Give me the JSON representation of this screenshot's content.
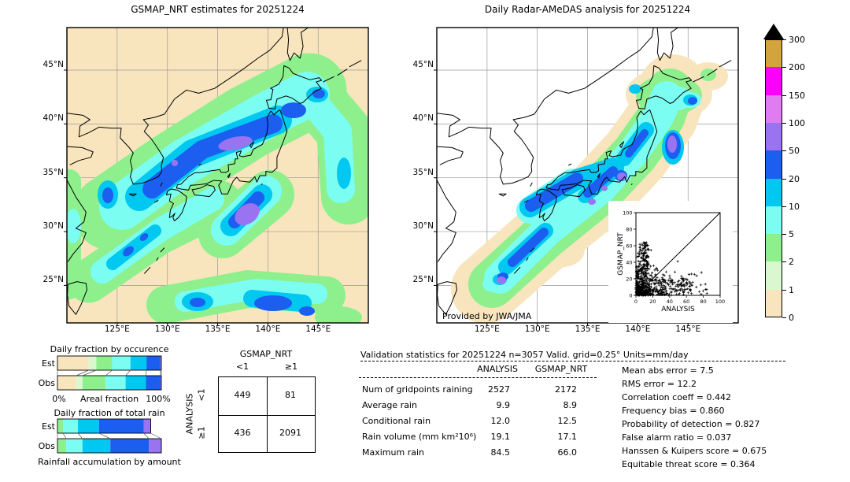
{
  "palette": {
    "p0": "#f8e5bd",
    "p1": "#d9f8cf",
    "p2": "#8df08d",
    "p5": "#7cfdf2",
    "p10": "#00c8f0",
    "p20": "#1c5ff0",
    "p50": "#9a74f0",
    "p100": "#e07cf2",
    "p150": "#fb00fb",
    "p200": "#d3a43e",
    "over": "#000000",
    "grid": "#9a9a9a",
    "ocean_right": "#ffffff"
  },
  "maps": {
    "left": {
      "title": "GSMAP_NRT estimates for 20251224",
      "lat_ticks": [
        "45°N",
        "40°N",
        "35°N",
        "30°N",
        "25°N"
      ],
      "lon_ticks": [
        "125°E",
        "130°E",
        "135°E",
        "140°E",
        "145°E"
      ]
    },
    "right": {
      "title": "Daily Radar-AMeDAS analysis for 20251224",
      "credit": "Provided by JWA/JMA",
      "lat_ticks": [
        "45°N",
        "40°N",
        "35°N",
        "30°N",
        "25°N"
      ],
      "lon_ticks": [
        "125°E",
        "130°E",
        "135°E",
        "140°E",
        "145°E"
      ]
    }
  },
  "colorbar": {
    "levels": [
      "300",
      "200",
      "150",
      "100",
      "50",
      "20",
      "10",
      "5",
      "2",
      "1",
      "0"
    ],
    "colors_top_to_bottom": [
      "p200",
      "p150",
      "p100",
      "p50",
      "p20",
      "p10",
      "p5",
      "p2",
      "p1",
      "p0"
    ]
  },
  "inset": {
    "xlabel": "ANALYSIS",
    "ylabel": "GSMAP_NRT",
    "ticks": [
      "0",
      "20",
      "40",
      "60",
      "80",
      "100"
    ]
  },
  "occurrence_chart": {
    "title": "Daily fraction by occurence",
    "rows": [
      "Est",
      "Obs"
    ],
    "axis_left": "0%",
    "axis_center": "Areal fraction",
    "axis_right": "100%",
    "bin_colors": [
      "p0",
      "p1",
      "p2",
      "p5",
      "p10",
      "p20",
      "p50"
    ],
    "est_pct": [
      30.1,
      7.3,
      15.2,
      17.7,
      15.4,
      13.4,
      0.9
    ],
    "obs_pct": [
      18.0,
      6.1,
      22.3,
      19.2,
      19.5,
      14.1,
      0.8
    ]
  },
  "totalrain_chart": {
    "title": "Daily fraction of total rain",
    "caption": "Rainfall accumulation by amount",
    "rows": [
      "Est",
      "Obs"
    ],
    "bin_colors": [
      "p2",
      "p5",
      "p10",
      "p20",
      "p50"
    ],
    "est_pct": [
      5.3,
      14.4,
      20.3,
      43.0,
      6.8
    ],
    "obs_pct": [
      8.4,
      15.7,
      26.8,
      37.2,
      11.9
    ]
  },
  "contingency": {
    "col_title": "GSMAP_NRT",
    "row_title": "ANALYSIS",
    "col_labels": [
      "<1",
      "≥1"
    ],
    "row_labels": [
      "<1",
      "≥1"
    ],
    "cells": [
      [
        "449",
        "81"
      ],
      [
        "436",
        "2091"
      ]
    ]
  },
  "stats_table": {
    "title": "Validation statistics for 20251224  n=3057 Valid. grid=0.25° Units=mm/day",
    "columns": [
      "ANALYSIS",
      "GSMAP_NRT"
    ],
    "rows": [
      [
        "Num of gridpoints raining",
        "2527",
        "2172"
      ],
      [
        "Average rain",
        "9.9",
        "8.9"
      ],
      [
        "Conditional rain",
        "12.0",
        "12.5"
      ],
      [
        "Rain volume (mm km²10⁶)",
        "19.1",
        "17.1"
      ],
      [
        "Maximum rain",
        "84.5",
        "66.0"
      ]
    ]
  },
  "scores": [
    {
      "label": "Mean abs error",
      "value": "7.5"
    },
    {
      "label": "RMS error",
      "value": "12.2"
    },
    {
      "label": "Correlation coeff",
      "value": "0.442"
    },
    {
      "label": "Frequency bias",
      "value": "0.860"
    },
    {
      "label": "Probability of detection",
      "value": "0.827"
    },
    {
      "label": "False alarm ratio",
      "value": "0.037"
    },
    {
      "label": "Hanssen & Kuipers score",
      "value": "0.675"
    },
    {
      "label": "Equitable threat score",
      "value": "0.364"
    }
  ],
  "chart_data": [
    {
      "type": "heatmap",
      "title": "GSMAP_NRT estimates for 20251224",
      "subtype": "precipitation map",
      "extent": {
        "lon": [
          120,
          150
        ],
        "lat": [
          21.5,
          49
        ]
      },
      "units": "mm/day",
      "levels": [
        0,
        1,
        2,
        5,
        10,
        20,
        50,
        100,
        150,
        200,
        300
      ],
      "annotations": "Heavy band (20–50, cores 50–150) across Sea of Japan from Korea to N-Honshu; secondary band SE of Honshu with 50–100 core; streaks SW toward Okinawa and along 22–24°N"
    },
    {
      "type": "heatmap",
      "title": "Daily Radar-AMeDAS analysis for 20251224",
      "subtype": "precipitation map",
      "extent": {
        "lon": [
          120,
          150
        ],
        "lat": [
          21.5,
          49
        ]
      },
      "units": "mm/day",
      "levels": [
        0,
        1,
        2,
        5,
        10,
        20,
        50,
        100,
        150,
        200,
        300
      ],
      "annotations": "Radar swath along Japanese archipelago only; 20–50 cores along San-in/Kyushu/Shikoku coasts and E-Tohoku with 50–100 spots; credit Provided by JWA/JMA"
    },
    {
      "type": "bar",
      "title": "Daily fraction by occurence",
      "orientation": "horizontal",
      "stacked": true,
      "xlabel": "Areal fraction",
      "xlim_pct": [
        0,
        100
      ],
      "categories": [
        "Est",
        "Obs"
      ],
      "bins_mm": [
        "0-1",
        "1-2",
        "2-5",
        "5-10",
        "10-20",
        "20-50",
        "50-100"
      ],
      "series": [
        {
          "name": "Est",
          "values_pct": [
            30.1,
            7.3,
            15.2,
            17.7,
            15.4,
            13.4,
            0.9
          ]
        },
        {
          "name": "Obs",
          "values_pct": [
            18.0,
            6.1,
            22.3,
            19.2,
            19.5,
            14.1,
            0.8
          ]
        }
      ]
    },
    {
      "type": "bar",
      "title": "Daily fraction of total rain",
      "orientation": "horizontal",
      "stacked": true,
      "caption": "Rainfall accumulation by amount",
      "categories": [
        "Est",
        "Obs"
      ],
      "bins_mm": [
        "2-5",
        "5-10",
        "10-20",
        "20-50",
        "50-100"
      ],
      "series": [
        {
          "name": "Est",
          "values_pct": [
            5.3,
            14.4,
            20.3,
            43.0,
            6.8
          ]
        },
        {
          "name": "Obs",
          "values_pct": [
            8.4,
            15.7,
            26.8,
            37.2,
            11.9
          ]
        }
      ],
      "note": "Est bar length ≈ 90% of Obs (volume ratio 17.1/19.1)"
    },
    {
      "type": "table",
      "title": "Contingency table (number of gridpoints)",
      "columns": [
        "GSMAP_NRT <1",
        "GSMAP_NRT ≥1"
      ],
      "rows": [
        "ANALYSIS <1",
        "ANALYSIS ≥1"
      ],
      "values": [
        [
          449,
          81
        ],
        [
          436,
          2091
        ]
      ]
    },
    {
      "type": "table",
      "title": "Validation statistics for 20251224 n=3057 Valid. grid=0.25° Units=mm/day",
      "columns": [
        "ANALYSIS",
        "GSMAP_NRT"
      ],
      "rows": [
        [
          "Num of gridpoints raining",
          2527,
          2172
        ],
        [
          "Average rain",
          9.9,
          8.9
        ],
        [
          "Conditional rain",
          12.0,
          12.5
        ],
        [
          "Rain volume (mm km²10⁶)",
          19.1,
          17.1
        ],
        [
          "Maximum rain",
          84.5,
          66.0
        ]
      ]
    },
    {
      "type": "scatter",
      "title": "GSMAP_NRT vs ANALYSIS (inset)",
      "xlabel": "ANALYSIS",
      "ylabel": "GSMAP_NRT",
      "xlim": [
        0,
        100
      ],
      "ylim": [
        0,
        100
      ],
      "ticks": [
        0,
        20,
        40,
        60,
        80,
        100
      ],
      "marker": "+",
      "diagonal": true,
      "description": "~3057 points; dense cluster <40 mm/day; vertical column up to ~65 at ANALYSIS 5-15; horizontal spread to ~85 at GSMAP<30"
    },
    {
      "type": "table",
      "title": "Skill scores",
      "rows": [
        [
          "Mean abs error",
          7.5
        ],
        [
          "RMS error",
          12.2
        ],
        [
          "Correlation coeff",
          0.442
        ],
        [
          "Frequency bias",
          0.86
        ],
        [
          "Probability of detection",
          0.827
        ],
        [
          "False alarm ratio",
          0.037
        ],
        [
          "Hanssen & Kuipers score",
          0.675
        ],
        [
          "Equitable threat score",
          0.364
        ]
      ]
    }
  ]
}
